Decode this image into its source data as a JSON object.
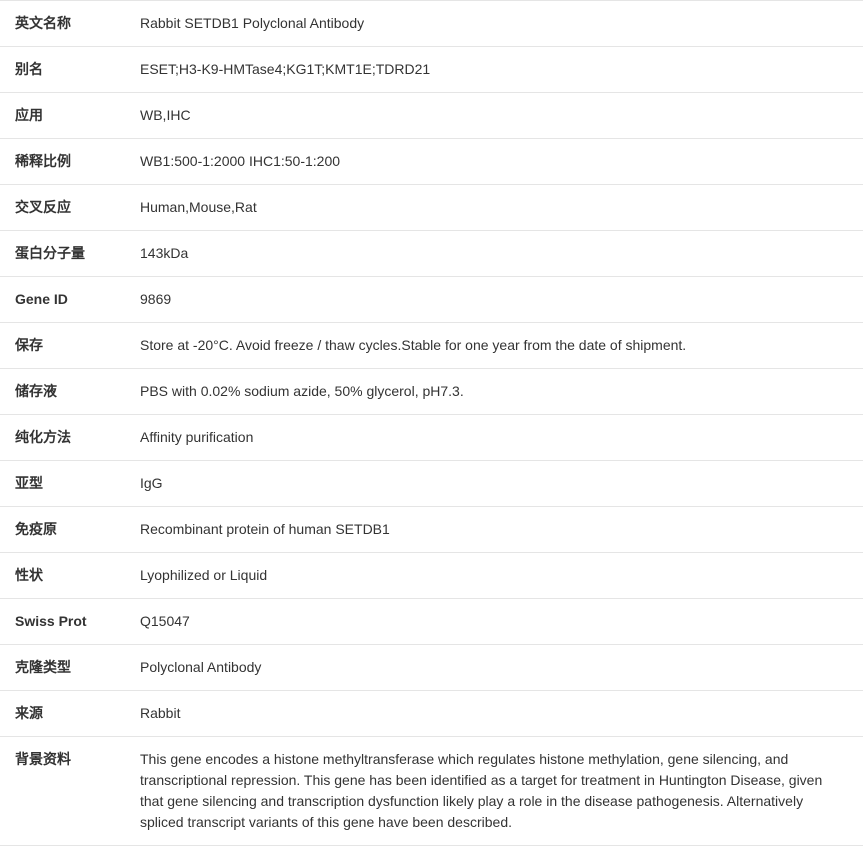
{
  "rows": [
    {
      "label": "英文名称",
      "value": "Rabbit SETDB1 Polyclonal Antibody"
    },
    {
      "label": "别名",
      "value": "ESET;H3-K9-HMTase4;KG1T;KMT1E;TDRD21"
    },
    {
      "label": "应用",
      "value": "WB,IHC"
    },
    {
      "label": "稀释比例",
      "value": "WB1:500-1:2000 IHC1:50-1:200"
    },
    {
      "label": "交叉反应",
      "value": "Human,Mouse,Rat"
    },
    {
      "label": "蛋白分子量",
      "value": "143kDa"
    },
    {
      "label": "Gene ID",
      "value": "9869"
    },
    {
      "label": "保存",
      "value": "Store at -20°C. Avoid freeze / thaw cycles.Stable for one year from the date of shipment."
    },
    {
      "label": "储存液",
      "value": "PBS with 0.02% sodium azide, 50% glycerol, pH7.3."
    },
    {
      "label": "纯化方法",
      "value": "Affinity purification"
    },
    {
      "label": "亚型",
      "value": "IgG"
    },
    {
      "label": "免疫原",
      "value": "Recombinant protein of human SETDB1"
    },
    {
      "label": "性状",
      "value": "Lyophilized or Liquid"
    },
    {
      "label": "Swiss Prot",
      "value": "Q15047"
    },
    {
      "label": "克隆类型",
      "value": "Polyclonal Antibody"
    },
    {
      "label": "来源",
      "value": "Rabbit"
    },
    {
      "label": "背景资料",
      "value": "This gene encodes a histone methyltransferase which regulates histone methylation, gene silencing, and transcriptional repression. This gene has been identified as a target for treatment in Huntington Disease, given that gene silencing and transcription dysfunction likely play a role in the disease pathogenesis. Alternatively spliced transcript variants of this gene have been described."
    }
  ]
}
